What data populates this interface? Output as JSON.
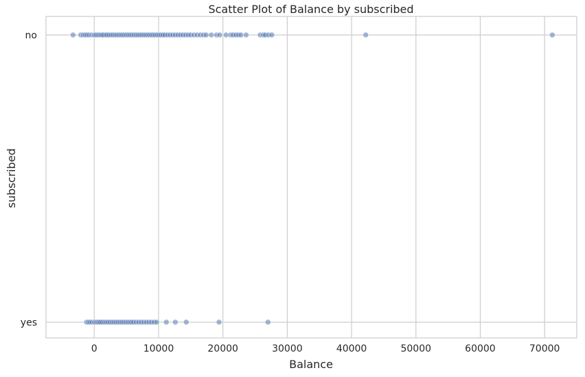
{
  "chart_data": {
    "type": "scatter",
    "title": "Scatter Plot of Balance by subscribed",
    "xlabel": "Balance",
    "ylabel": "subscribed",
    "xlim": [
      -7500,
      75000
    ],
    "xticks": [
      0,
      10000,
      20000,
      30000,
      40000,
      50000,
      60000,
      70000
    ],
    "categories": [
      "no",
      "yes"
    ],
    "grid": true,
    "color": "#4c72b0",
    "series": [
      {
        "name": "no",
        "x": [
          -3300,
          -2100,
          -1700,
          -1400,
          -1100,
          -800,
          -500,
          -300,
          -100,
          0,
          150,
          300,
          500,
          700,
          900,
          1100,
          1300,
          1500,
          1800,
          2000,
          2300,
          2600,
          2900,
          3200,
          3500,
          3800,
          4100,
          4400,
          4700,
          5000,
          5300,
          5600,
          5900,
          6200,
          6500,
          6800,
          7100,
          7400,
          7700,
          8000,
          8300,
          8600,
          8900,
          9200,
          9500,
          9800,
          10100,
          10400,
          10700,
          11000,
          11400,
          11800,
          12200,
          12600,
          13000,
          13400,
          13800,
          14200,
          14600,
          15000,
          15500,
          16000,
          16500,
          17000,
          17400,
          18200,
          19000,
          19500,
          20500,
          21200,
          21600,
          22000,
          22400,
          22800,
          23600,
          25800,
          26300,
          26600,
          27100,
          27600,
          42200,
          71200
        ]
      },
      {
        "name": "yes",
        "x": [
          -1200,
          -900,
          -600,
          -300,
          0,
          200,
          400,
          600,
          800,
          1000,
          1300,
          1600,
          1900,
          2200,
          2500,
          2800,
          3100,
          3400,
          3700,
          4000,
          4300,
          4600,
          4900,
          5200,
          5500,
          5800,
          6100,
          6500,
          6900,
          7300,
          7700,
          8100,
          8500,
          8900,
          9300,
          9700,
          11200,
          12600,
          14300,
          19400,
          27000
        ]
      }
    ]
  }
}
